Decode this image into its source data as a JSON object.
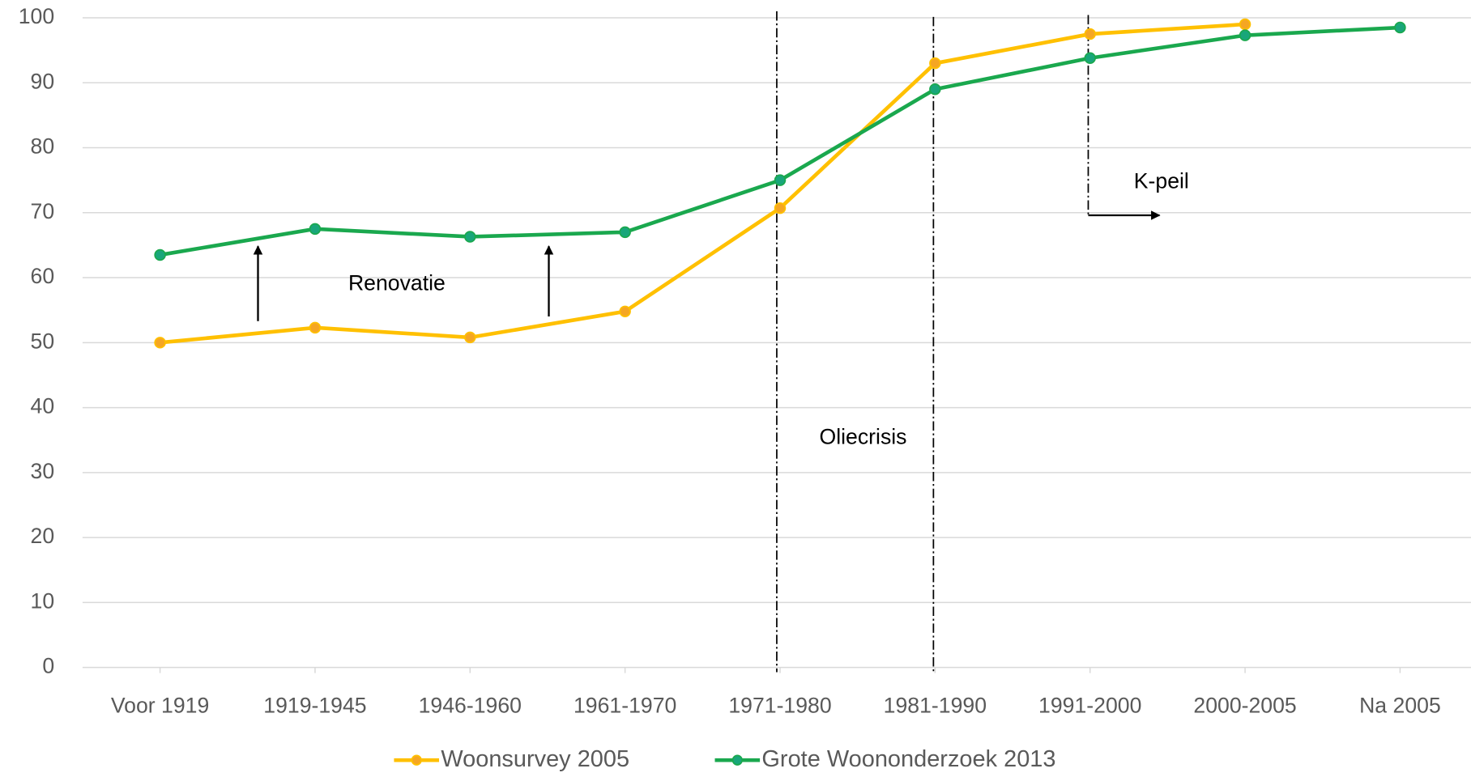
{
  "chart_data": {
    "type": "line",
    "categories": [
      "Voor 1919",
      "1919-1945",
      "1946-1960",
      "1961-1970",
      "1971-1980",
      "1981-1990",
      "1991-2000",
      "2000-2005",
      "Na 2005"
    ],
    "series": [
      {
        "name": "Woonsurvey 2005",
        "color": "#ffc000",
        "marker_color": "#f5a623",
        "values": [
          50,
          52.3,
          50.8,
          54.8,
          70.7,
          93,
          97.5,
          99,
          null
        ]
      },
      {
        "name": "Grote Woononderzoek 2013",
        "color": "#1aa84e",
        "marker_color": "#19a67a",
        "values": [
          63.5,
          67.5,
          66.3,
          67,
          75,
          89,
          93.8,
          97.3,
          98.5
        ]
      }
    ],
    "ylim": [
      0,
      100
    ],
    "yticks": [
      0,
      10,
      20,
      30,
      40,
      50,
      60,
      70,
      80,
      90,
      100
    ],
    "grid": true,
    "legend": "bottom",
    "annotations": [
      "Renovatie",
      "Oliecrisis",
      "K-peil"
    ]
  }
}
